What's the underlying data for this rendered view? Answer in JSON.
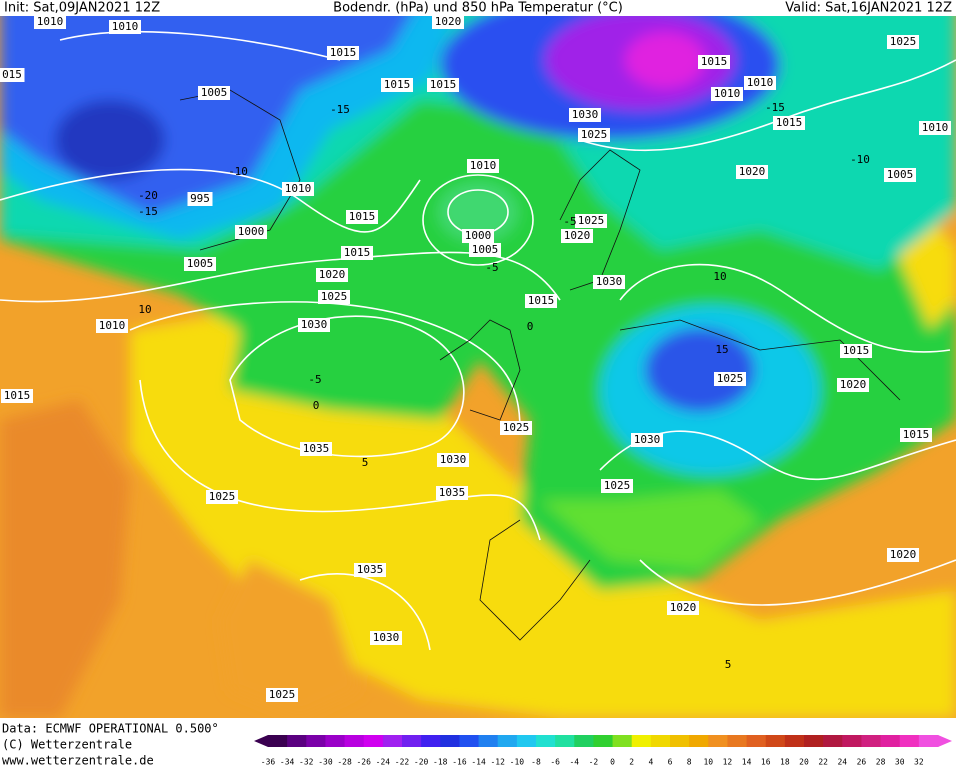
{
  "header": {
    "init": "Init: Sat,09JAN2021 12Z",
    "title": "Bodendr. (hPa) und 850 hPa Temperatur (°C)",
    "valid": "Valid: Sat,16JAN2021 12Z"
  },
  "pressure_labels": [
    "1010",
    "1020",
    "015",
    "1010",
    "1015",
    "1005",
    "1015",
    "1015",
    "1015",
    "1010",
    "1010",
    "1025",
    "1030",
    "1025",
    "1015",
    "1010",
    "1020",
    "1005",
    "1010",
    "1010",
    "995",
    "1015",
    "1000",
    "1000",
    "1005",
    "1025",
    "1020",
    "1015",
    "1005",
    "1020",
    "1030",
    "1025",
    "1015",
    "1010",
    "1030",
    "1015",
    "1025",
    "1020",
    "1015",
    "1025",
    "1015",
    "1030",
    "1035",
    "1030",
    "1025",
    "1035",
    "1025",
    "1020",
    "1035",
    "1020",
    "1030",
    "1025"
  ],
  "temperature_labels": [
    "-20",
    "-15",
    "-15",
    "-10",
    "-5",
    "0",
    "5",
    "10",
    "15",
    "-5",
    "0",
    "-5",
    "-10",
    "-15",
    "5",
    "10"
  ],
  "footer": {
    "data": "Data: ECMWF OPERATIONAL 0.500°",
    "copyright": "(C) Wetterzentrale",
    "url": "www.wetterzentrale.de"
  },
  "scale": [
    "-36",
    "-34",
    "-32",
    "-30",
    "-28",
    "-26",
    "-24",
    "-22",
    "-20",
    "-18",
    "-16",
    "-14",
    "-12",
    "-10",
    "-8",
    "-6",
    "-4",
    "-2",
    "0",
    "2",
    "4",
    "6",
    "8",
    "10",
    "12",
    "14",
    "16",
    "18",
    "20",
    "22",
    "24",
    "26",
    "28",
    "30",
    "32"
  ]
}
